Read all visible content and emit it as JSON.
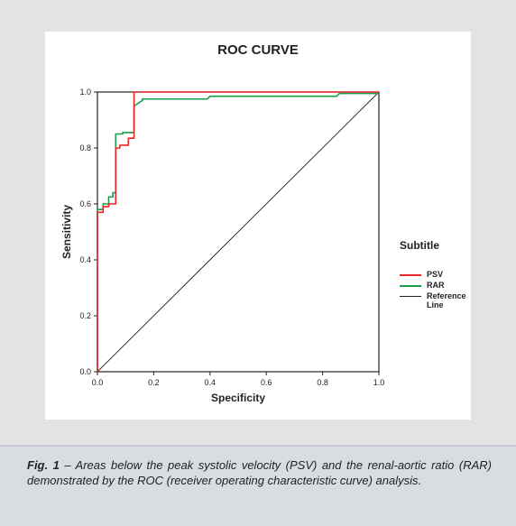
{
  "chart_data": {
    "type": "line",
    "title": "ROC CURVE",
    "xlabel": "Specificity",
    "ylabel": "Sensitivity",
    "xlim": [
      0.0,
      1.0
    ],
    "ylim": [
      0.0,
      1.0
    ],
    "xticks": [
      "0.0",
      "0.2",
      "0.4",
      "0.6",
      "0.8",
      "1.0"
    ],
    "yticks": [
      "0.0",
      "0.2",
      "0.4",
      "0.6",
      "0.8",
      "1.0"
    ],
    "legend_title": "Subtitle",
    "legend_position": "right",
    "series": [
      {
        "name": "PSV",
        "color": "#e8272a",
        "points": [
          [
            0,
            0
          ],
          [
            0,
            0.57
          ],
          [
            0.02,
            0.57
          ],
          [
            0.02,
            0.59
          ],
          [
            0.04,
            0.59
          ],
          [
            0.04,
            0.6
          ],
          [
            0.065,
            0.6
          ],
          [
            0.065,
            0.8
          ],
          [
            0.08,
            0.8
          ],
          [
            0.08,
            0.81
          ],
          [
            0.11,
            0.81
          ],
          [
            0.11,
            0.835
          ],
          [
            0.13,
            0.835
          ],
          [
            0.13,
            1.0
          ],
          [
            1.0,
            1.0
          ]
        ]
      },
      {
        "name": "RAR",
        "color": "#1a9e4a",
        "points": [
          [
            0,
            0
          ],
          [
            0,
            0.58
          ],
          [
            0.02,
            0.58
          ],
          [
            0.02,
            0.6
          ],
          [
            0.04,
            0.6
          ],
          [
            0.04,
            0.625
          ],
          [
            0.055,
            0.625
          ],
          [
            0.055,
            0.64
          ],
          [
            0.065,
            0.64
          ],
          [
            0.065,
            0.85
          ],
          [
            0.09,
            0.85
          ],
          [
            0.09,
            0.855
          ],
          [
            0.13,
            0.855
          ],
          [
            0.13,
            0.95
          ],
          [
            0.16,
            0.97
          ],
          [
            0.16,
            0.975
          ],
          [
            0.39,
            0.975
          ],
          [
            0.4,
            0.985
          ],
          [
            0.85,
            0.985
          ],
          [
            0.86,
            0.995
          ],
          [
            1.0,
            0.995
          ]
        ]
      },
      {
        "name": "Reference Line",
        "color": "#222222",
        "points": [
          [
            0,
            0
          ],
          [
            1,
            1
          ]
        ]
      }
    ]
  },
  "caption": {
    "label": "Fig. 1",
    "text": " – Areas below the peak systolic velocity (PSV) and the renal-aortic ratio (RAR) demonstrated by the ROC (receiver operating characteristic curve) analysis."
  }
}
